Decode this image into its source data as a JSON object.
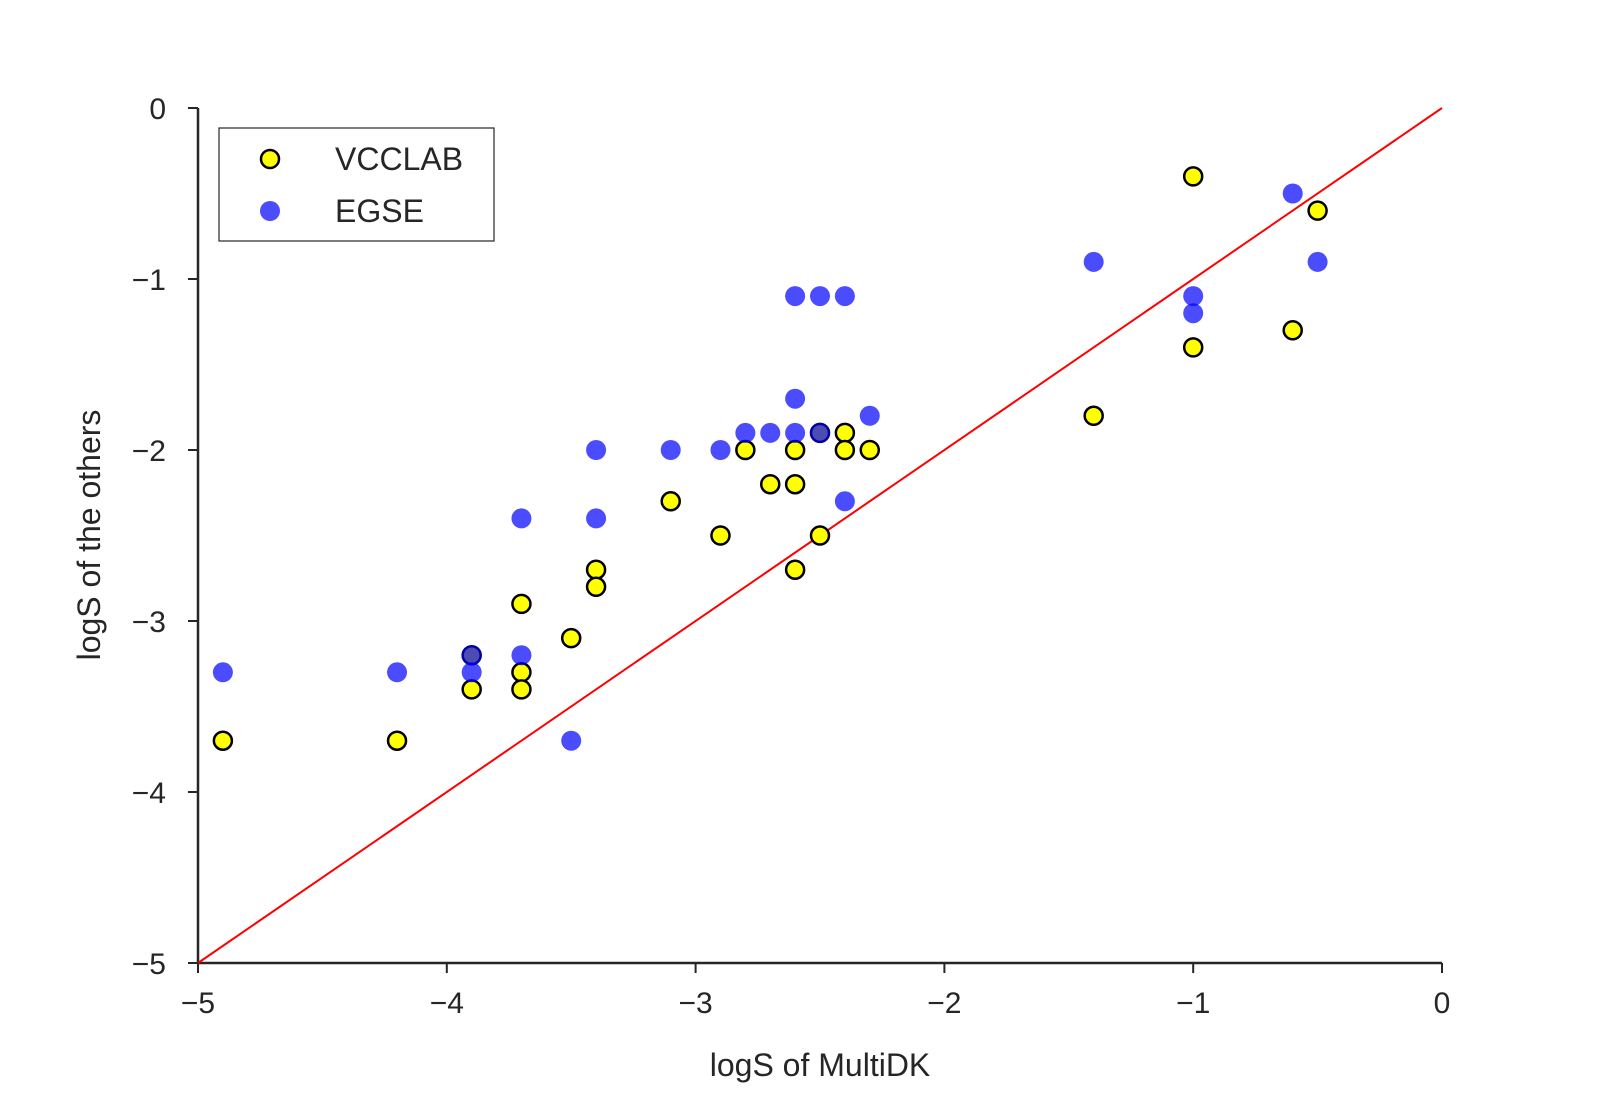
{
  "chart_data": {
    "type": "scatter",
    "title": "",
    "xlabel": "logS of MultiDK",
    "ylabel": "logS of the others",
    "xlim": [
      -5,
      0
    ],
    "ylim": [
      -5,
      0
    ],
    "xticks": [
      -5,
      -4,
      -3,
      -2,
      -1,
      0
    ],
    "yticks": [
      -5,
      -4,
      -3,
      -2,
      -1,
      0
    ],
    "xtick_labels": [
      "−5",
      "−4",
      "−3",
      "−2",
      "−1",
      "0"
    ],
    "ytick_labels": [
      "−5",
      "−4",
      "−3",
      "−2",
      "−1",
      "0"
    ],
    "grid": false,
    "legend_position": "top-left",
    "reference_line": {
      "name": "y = x",
      "x": [
        -5,
        0
      ],
      "y": [
        -5,
        0
      ],
      "color": "#ff0000"
    },
    "series": [
      {
        "name": "VCCLAB",
        "marker": "circle-outlined",
        "color": "#ffff00",
        "edge_color": "#000000",
        "points": [
          [
            -4.9,
            -3.7
          ],
          [
            -4.2,
            -3.7
          ],
          [
            -3.9,
            -3.2
          ],
          [
            -3.9,
            -3.4
          ],
          [
            -3.7,
            -2.9
          ],
          [
            -3.7,
            -3.3
          ],
          [
            -3.7,
            -3.4
          ],
          [
            -3.5,
            -3.1
          ],
          [
            -3.4,
            -2.7
          ],
          [
            -3.4,
            -2.8
          ],
          [
            -3.1,
            -2.3
          ],
          [
            -2.9,
            -2.5
          ],
          [
            -2.8,
            -2.0
          ],
          [
            -2.7,
            -2.2
          ],
          [
            -2.6,
            -2.0
          ],
          [
            -2.6,
            -2.2
          ],
          [
            -2.6,
            -2.7
          ],
          [
            -2.5,
            -1.9
          ],
          [
            -2.5,
            -2.5
          ],
          [
            -2.4,
            -1.9
          ],
          [
            -2.4,
            -2.0
          ],
          [
            -2.3,
            -2.0
          ],
          [
            -1.4,
            -1.8
          ],
          [
            -1.0,
            -0.4
          ],
          [
            -1.0,
            -1.4
          ],
          [
            -0.6,
            -1.3
          ],
          [
            -0.5,
            -0.6
          ]
        ]
      },
      {
        "name": "EGSE",
        "marker": "circle",
        "color": "#0000ff",
        "opacity": 0.7,
        "points": [
          [
            -4.9,
            -3.3
          ],
          [
            -4.2,
            -3.3
          ],
          [
            -3.9,
            -3.2
          ],
          [
            -3.9,
            -3.3
          ],
          [
            -3.7,
            -2.4
          ],
          [
            -3.7,
            -3.2
          ],
          [
            -3.5,
            -3.7
          ],
          [
            -3.4,
            -2.0
          ],
          [
            -3.4,
            -2.4
          ],
          [
            -3.1,
            -2.0
          ],
          [
            -2.9,
            -2.0
          ],
          [
            -2.8,
            -1.9
          ],
          [
            -2.7,
            -1.9
          ],
          [
            -2.6,
            -1.1
          ],
          [
            -2.6,
            -1.7
          ],
          [
            -2.6,
            -1.9
          ],
          [
            -2.5,
            -1.1
          ],
          [
            -2.5,
            -1.9
          ],
          [
            -2.4,
            -1.1
          ],
          [
            -2.4,
            -2.3
          ],
          [
            -2.3,
            -1.8
          ],
          [
            -1.4,
            -0.9
          ],
          [
            -1.0,
            -1.1
          ],
          [
            -1.0,
            -1.2
          ],
          [
            -0.6,
            -0.5
          ],
          [
            -0.5,
            -0.9
          ]
        ]
      }
    ]
  }
}
